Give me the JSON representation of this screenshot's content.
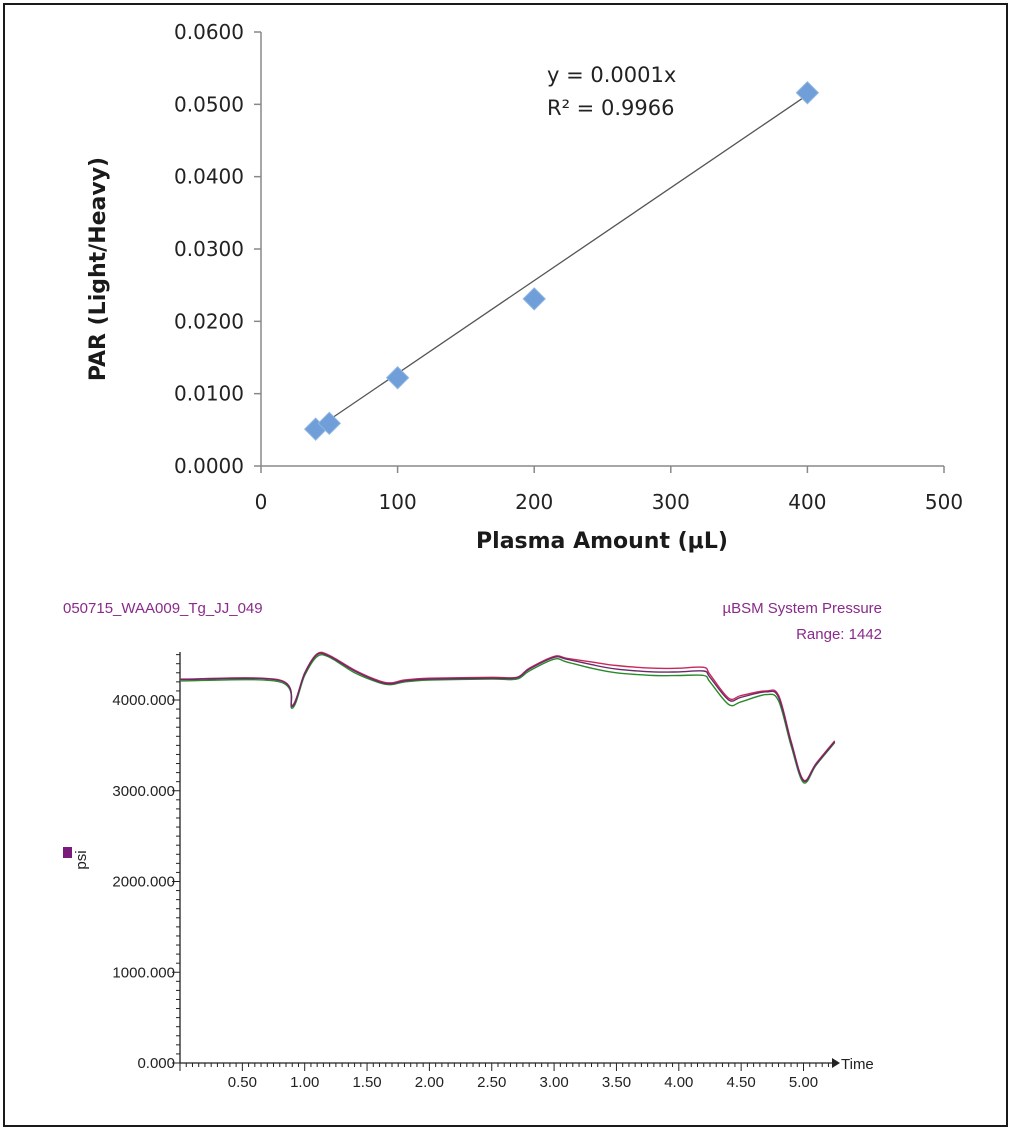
{
  "chart_data": [
    {
      "type": "scatter",
      "xlabel": "Plasma Amount (μL)",
      "ylabel": "PAR (Light/Heavy)",
      "xlim": [
        0,
        500
      ],
      "ylim": [
        0,
        0.06
      ],
      "x_ticks": [
        "0",
        "100",
        "200",
        "300",
        "400",
        "500"
      ],
      "y_ticks": [
        "0.0000",
        "0.0100",
        "0.0200",
        "0.0300",
        "0.0400",
        "0.0500",
        "0.0600"
      ],
      "x_tick_values": [
        0,
        100,
        200,
        300,
        400,
        500
      ],
      "y_tick_values": [
        0,
        0.01,
        0.02,
        0.03,
        0.04,
        0.05,
        0.06
      ],
      "points": [
        {
          "x": 40,
          "y": 0.0051
        },
        {
          "x": 50,
          "y": 0.0059
        },
        {
          "x": 100,
          "y": 0.0122
        },
        {
          "x": 200,
          "y": 0.0231
        },
        {
          "x": 400,
          "y": 0.0516
        }
      ],
      "trendline": {
        "x": [
          40,
          400
        ],
        "y": [
          0.0051,
          0.0513
        ]
      },
      "equation": "y = 0.0001x",
      "r_squared": "R² = 0.9966",
      "grid": false,
      "marker_color": "#6f9ed8",
      "line_color": "#555555"
    },
    {
      "type": "line",
      "title_left": "050715_WAA009_Tg_JJ_049",
      "title_right": "µBSM System Pressure",
      "range_label": "Range: 1442",
      "ylabel": "psi",
      "xlabel": "Time",
      "xlim": [
        0,
        5.25
      ],
      "ylim": [
        0,
        4500
      ],
      "x_ticks": [
        "0.50",
        "1.00",
        "1.50",
        "2.00",
        "2.50",
        "3.00",
        "3.50",
        "4.00",
        "4.50",
        "5.00"
      ],
      "y_ticks": [
        "0.000",
        "1000.000",
        "2000.000",
        "3000.000",
        "4000.000"
      ],
      "x_tick_values": [
        0.5,
        1.0,
        1.5,
        2.0,
        2.5,
        3.0,
        3.5,
        4.0,
        4.5,
        5.0
      ],
      "y_tick_values": [
        0,
        1000,
        2000,
        3000,
        4000
      ],
      "grid": false,
      "label_color": "#8a2a8a",
      "series": [
        {
          "color": "#c8285a",
          "x": [
            0,
            0.8,
            0.9,
            1.0,
            1.1,
            1.2,
            1.4,
            1.6,
            1.7,
            1.8,
            2.0,
            2.5,
            2.7,
            2.8,
            3.0,
            3.1,
            3.3,
            3.5,
            3.8,
            4.0,
            4.2,
            4.25,
            4.4,
            4.5,
            4.7,
            4.8,
            4.9,
            5.0,
            5.1,
            5.25
          ],
          "y": [
            4230,
            4220,
            3940,
            4300,
            4510,
            4490,
            4330,
            4210,
            4190,
            4220,
            4240,
            4250,
            4250,
            4350,
            4480,
            4460,
            4420,
            4380,
            4350,
            4350,
            4360,
            4280,
            4020,
            4050,
            4100,
            4050,
            3550,
            3120,
            3300,
            3550
          ]
        },
        {
          "color": "#2a8a2a",
          "x": [
            0,
            0.8,
            0.9,
            1.0,
            1.1,
            1.2,
            1.4,
            1.6,
            1.7,
            1.8,
            2.0,
            2.5,
            2.7,
            2.8,
            3.0,
            3.1,
            3.3,
            3.5,
            3.8,
            4.0,
            4.2,
            4.25,
            4.4,
            4.5,
            4.7,
            4.8,
            4.9,
            5.0,
            5.1,
            5.25
          ],
          "y": [
            4210,
            4200,
            3910,
            4270,
            4480,
            4470,
            4300,
            4190,
            4170,
            4200,
            4220,
            4230,
            4230,
            4320,
            4450,
            4420,
            4350,
            4300,
            4270,
            4270,
            4270,
            4200,
            3950,
            3980,
            4060,
            3990,
            3500,
            3090,
            3280,
            3530
          ]
        },
        {
          "color": "#6a2a6a",
          "x": [
            0,
            0.8,
            0.9,
            1.0,
            1.1,
            1.2,
            1.4,
            1.6,
            1.7,
            1.8,
            2.0,
            2.5,
            2.7,
            2.8,
            3.0,
            3.1,
            3.3,
            3.5,
            3.8,
            4.0,
            4.2,
            4.25,
            4.4,
            4.5,
            4.7,
            4.8,
            4.9,
            5.0,
            5.1,
            5.25
          ],
          "y": [
            4225,
            4215,
            3930,
            4290,
            4500,
            4480,
            4320,
            4200,
            4180,
            4210,
            4230,
            4240,
            4245,
            4340,
            4470,
            4450,
            4390,
            4340,
            4310,
            4310,
            4320,
            4250,
            4000,
            4030,
            4090,
            4030,
            3530,
            3110,
            3290,
            3540
          ]
        }
      ]
    }
  ]
}
